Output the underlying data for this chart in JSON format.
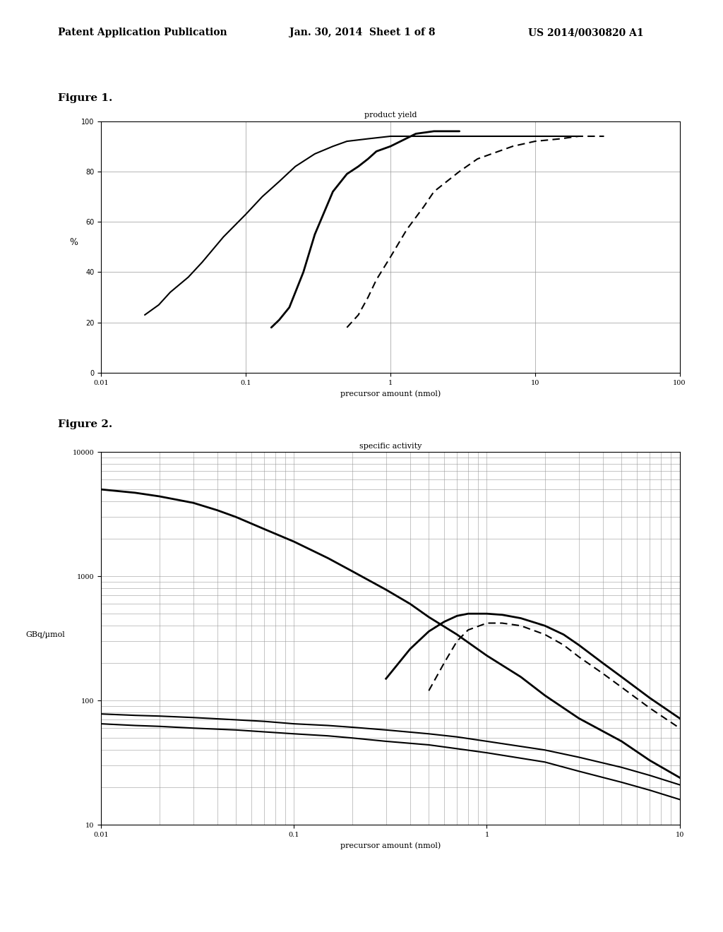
{
  "header_left": "Patent Application Publication",
  "header_mid": "Jan. 30, 2014  Sheet 1 of 8",
  "header_right": "US 2014/0030820 A1",
  "fig1_title": "Figure 1.",
  "fig1_chart_title": "product yield",
  "fig1_xlabel": "precursor amount (nmol)",
  "fig1_ylabel": "%",
  "fig1_xlim": [
    0.01,
    100
  ],
  "fig1_ylim": [
    0,
    100
  ],
  "fig1_yticks": [
    0,
    20,
    40,
    60,
    80,
    100
  ],
  "fig1_xticks": [
    0.01,
    0.1,
    1,
    10,
    100
  ],
  "fig1_xtick_labels": [
    "0.01",
    "0.1",
    "1",
    "10",
    "100"
  ],
  "fig1_curve1_x": [
    0.02,
    0.025,
    0.03,
    0.04,
    0.05,
    0.07,
    0.1,
    0.13,
    0.17,
    0.22,
    0.3,
    0.4,
    0.5,
    0.7,
    1.0,
    2.0,
    5.0,
    10.0,
    20.0
  ],
  "fig1_curve1_y": [
    23,
    27,
    32,
    38,
    44,
    54,
    63,
    70,
    76,
    82,
    87,
    90,
    92,
    93,
    94,
    94,
    94,
    94,
    94
  ],
  "fig1_curve2_x": [
    0.15,
    0.17,
    0.2,
    0.25,
    0.3,
    0.4,
    0.5,
    0.6,
    0.7,
    0.8,
    1.0,
    1.5,
    2.0,
    3.0
  ],
  "fig1_curve2_y": [
    18,
    21,
    26,
    40,
    55,
    72,
    79,
    82,
    85,
    88,
    90,
    95,
    96,
    96
  ],
  "fig1_curve3_x": [
    0.5,
    0.6,
    0.7,
    0.8,
    1.0,
    1.3,
    1.7,
    2.0,
    3.0,
    4.0,
    5.0,
    7.0,
    10.0,
    15.0,
    20.0,
    30.0
  ],
  "fig1_curve3_y": [
    18,
    23,
    30,
    37,
    46,
    57,
    66,
    72,
    80,
    85,
    87,
    90,
    92,
    93,
    94,
    94
  ],
  "fig2_title": "Figure 2.",
  "fig2_chart_title": "specific activity",
  "fig2_xlabel": "precursor amount (nmol)",
  "fig2_ylabel": "GBq/µmol",
  "fig2_xlim": [
    0.01,
    10
  ],
  "fig2_ylim": [
    10,
    10000
  ],
  "fig2_yticks": [
    10,
    100,
    1000,
    10000
  ],
  "fig2_ytick_labels": [
    "10",
    "100",
    "1000",
    "10000"
  ],
  "fig2_xticks": [
    0.01,
    0.1,
    1,
    10
  ],
  "fig2_xtick_labels": [
    "0.01",
    "0.1",
    "1",
    "10"
  ],
  "fig2_curve_main_x": [
    0.01,
    0.015,
    0.02,
    0.03,
    0.04,
    0.05,
    0.07,
    0.1,
    0.15,
    0.2,
    0.3,
    0.4,
    0.5,
    0.7,
    1.0,
    1.5,
    2.0,
    3.0,
    5.0,
    7.0,
    10.0
  ],
  "fig2_curve_main_y": [
    5000,
    4700,
    4400,
    3900,
    3400,
    3000,
    2400,
    1900,
    1400,
    1100,
    780,
    600,
    470,
    340,
    230,
    155,
    110,
    72,
    47,
    33,
    24
  ],
  "fig2_curve_bell_x": [
    0.3,
    0.4,
    0.5,
    0.6,
    0.7,
    0.8,
    1.0,
    1.2,
    1.5,
    2.0,
    2.5,
    3.0,
    4.0,
    5.0,
    7.0,
    10.0
  ],
  "fig2_curve_bell_y": [
    150,
    260,
    360,
    430,
    480,
    500,
    500,
    490,
    460,
    400,
    340,
    280,
    200,
    155,
    105,
    72
  ],
  "fig2_curve_bell_dashed_x": [
    0.5,
    0.6,
    0.7,
    0.8,
    1.0,
    1.2,
    1.5,
    2.0,
    2.5,
    3.0,
    4.0,
    5.0,
    7.0,
    10.0
  ],
  "fig2_curve_bell_dashed_y": [
    120,
    200,
    300,
    370,
    420,
    420,
    400,
    340,
    280,
    225,
    165,
    128,
    87,
    60
  ],
  "fig2_curve_flat1_x": [
    0.01,
    0.015,
    0.02,
    0.03,
    0.05,
    0.07,
    0.1,
    0.15,
    0.2,
    0.3,
    0.5,
    0.7,
    1.0,
    2.0,
    3.0,
    5.0,
    7.0,
    10.0
  ],
  "fig2_curve_flat1_y": [
    78,
    76,
    75,
    73,
    70,
    68,
    65,
    63,
    61,
    58,
    54,
    51,
    47,
    40,
    35,
    29,
    25,
    21
  ],
  "fig2_curve_flat2_x": [
    0.01,
    0.015,
    0.02,
    0.03,
    0.05,
    0.07,
    0.1,
    0.15,
    0.2,
    0.3,
    0.5,
    0.7,
    1.0,
    2.0,
    3.0,
    5.0,
    7.0,
    10.0
  ],
  "fig2_curve_flat2_y": [
    65,
    63,
    62,
    60,
    58,
    56,
    54,
    52,
    50,
    47,
    44,
    41,
    38,
    32,
    27,
    22,
    19,
    16
  ],
  "background_color": "#ffffff",
  "text_color": "#000000",
  "grid_color": "#999999"
}
